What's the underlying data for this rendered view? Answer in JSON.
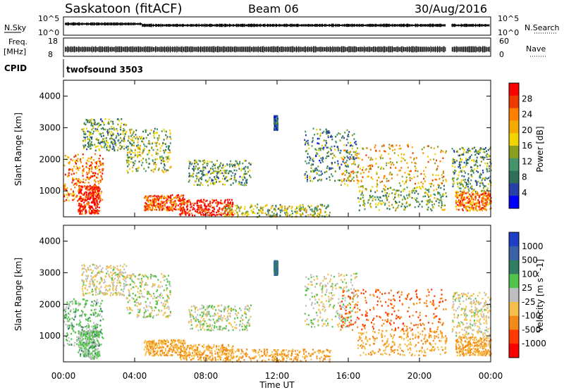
{
  "header": {
    "title": "Saskatoon (fitACF)",
    "beam": "Beam 06",
    "date": "30/Aug/2016"
  },
  "strips": {
    "nsky_label": "N.Sky",
    "nsky_ticks": [
      "10^5",
      "10^0"
    ],
    "nsearch_label": "N.Search",
    "nsearch_ticks": [
      "10^5",
      "10^0"
    ],
    "freq_label_1": "Freq.",
    "freq_label_2": "[MHz]",
    "freq_ticks": [
      "18",
      "8"
    ],
    "nave_label": "Nave",
    "nave_ticks": [
      "60",
      "0"
    ],
    "cpid_label": "CPID",
    "cpid_value": "twofsound 3503"
  },
  "axes": {
    "ylabel": "Slant Range [km]",
    "yticks": [
      "4000",
      "3000",
      "2000",
      "1000"
    ],
    "xticks": [
      "00:00",
      "04:00",
      "08:00",
      "12:00",
      "16:00",
      "20:00",
      "00:00"
    ],
    "xlabel": "Time UT"
  },
  "power_colorbar": {
    "label": "Power [dB]",
    "ticks": [
      "28",
      "24",
      "20",
      "16",
      "12",
      "8",
      "4"
    ],
    "colors": [
      "#ff0000",
      "#ee3a00",
      "#ff7f00",
      "#f5aa00",
      "#f2d400",
      "#88a01e",
      "#44946e",
      "#2f6e5a",
      "#2640a8",
      "#0000ff"
    ]
  },
  "velocity_colorbar": {
    "label": "Velocity [m s^-1]",
    "ticks": [
      "1000",
      "500",
      "100",
      "25",
      "-25",
      "-100",
      "-500",
      "-1000"
    ],
    "colors": [
      "#1e3ec8",
      "#3a62a8",
      "#2f7e62",
      "#52c44a",
      "#bebebe",
      "#f5c04a",
      "#f28a18",
      "#ff3a00",
      "#ff0000"
    ]
  },
  "chart_data": {
    "type": "heatmap",
    "panels": [
      {
        "name": "Power",
        "units": "dB",
        "x_range_hours": [
          0,
          24
        ],
        "y_range_km": [
          180,
          4500
        ]
      },
      {
        "name": "Velocity",
        "units": "m s^-1",
        "x_range_hours": [
          0,
          24
        ],
        "y_range_km": [
          180,
          4500
        ]
      }
    ],
    "scatter_regions": [
      {
        "t": [
          0.0,
          2.2
        ],
        "r": [
          700,
          2200
        ],
        "power": 22,
        "velocity": 50
      },
      {
        "t": [
          0.8,
          2.0
        ],
        "r": [
          300,
          1200
        ],
        "power": 28,
        "velocity": 50
      },
      {
        "t": [
          1.0,
          3.5
        ],
        "r": [
          2300,
          3300
        ],
        "power": 10,
        "velocity": -25
      },
      {
        "t": [
          3.5,
          6.0
        ],
        "r": [
          1600,
          3000
        ],
        "power": 12,
        "velocity": 0
      },
      {
        "t": [
          4.5,
          6.8
        ],
        "r": [
          400,
          900
        ],
        "power": 24,
        "velocity": -100
      },
      {
        "t": [
          6.5,
          9.5
        ],
        "r": [
          250,
          750
        ],
        "power": 28,
        "velocity": -100
      },
      {
        "t": [
          7.0,
          10.5
        ],
        "r": [
          1200,
          2000
        ],
        "power": 10,
        "velocity": 0
      },
      {
        "t": [
          9.0,
          15.0
        ],
        "r": [
          200,
          600
        ],
        "power": 14,
        "velocity": -100
      },
      {
        "t": [
          11.8,
          12.0
        ],
        "r": [
          2950,
          3400
        ],
        "power": 6,
        "velocity": 500
      },
      {
        "t": [
          13.5,
          16.5
        ],
        "r": [
          1300,
          3000
        ],
        "power": 8,
        "velocity": 0
      },
      {
        "t": [
          15.5,
          21.5
        ],
        "r": [
          1200,
          2500
        ],
        "power": 18,
        "velocity": -500
      },
      {
        "t": [
          16.5,
          21.5
        ],
        "r": [
          400,
          1200
        ],
        "power": 12,
        "velocity": -100
      },
      {
        "t": [
          21.8,
          24.0
        ],
        "r": [
          1000,
          2400
        ],
        "power": 10,
        "velocity": -25
      },
      {
        "t": [
          22.0,
          24.0
        ],
        "r": [
          400,
          1000
        ],
        "power": 22,
        "velocity": -100
      }
    ],
    "range_ticks_km": [
      1000,
      2000,
      3000,
      4000
    ],
    "time_ticks_hours": [
      0,
      4,
      8,
      12,
      16,
      20,
      24
    ]
  }
}
